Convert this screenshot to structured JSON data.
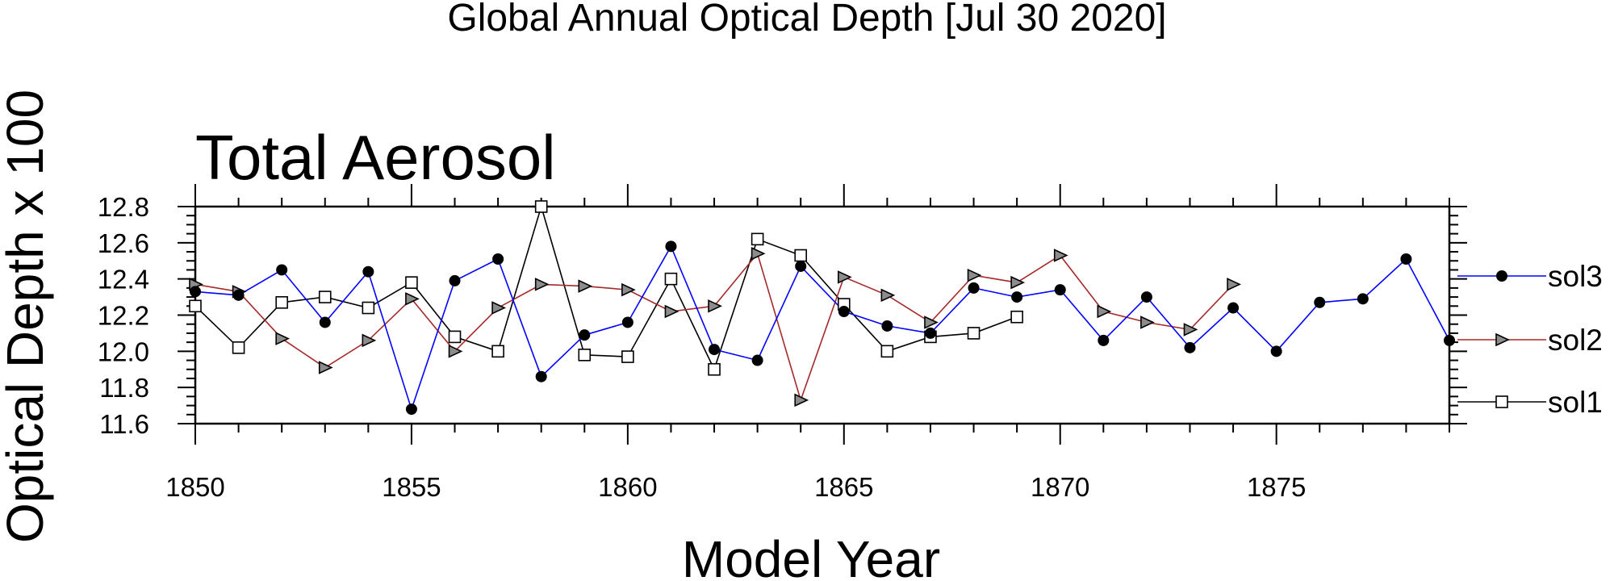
{
  "chart_data": {
    "type": "line",
    "title": "Global Annual Optical Depth [Jul 30 2020]",
    "subtitle": "Total Aerosol",
    "xlabel": "Model Year",
    "ylabel": "Optical Depth x 100",
    "xlim": [
      1850,
      1879
    ],
    "ylim": [
      11.6,
      12.8
    ],
    "xticks": [
      1850,
      1855,
      1860,
      1865,
      1870,
      1875
    ],
    "xtick_labels": [
      "1850",
      "1855",
      "1860",
      "1865",
      "1870",
      "1875"
    ],
    "yticks": [
      11.6,
      11.8,
      12.0,
      12.2,
      12.4,
      12.6,
      12.8
    ],
    "ytick_labels": [
      "11.6",
      "11.8",
      "12.0",
      "12.2",
      "12.4",
      "12.6",
      "12.8"
    ],
    "legend_position": "right",
    "series": [
      {
        "name": "sol3",
        "color": "#0000ff",
        "marker": "filled-circle",
        "x": [
          1850,
          1851,
          1852,
          1853,
          1854,
          1855,
          1856,
          1857,
          1858,
          1859,
          1860,
          1861,
          1862,
          1863,
          1864,
          1865,
          1866,
          1867,
          1868,
          1869,
          1870,
          1871,
          1872,
          1873,
          1874,
          1875,
          1876,
          1877,
          1878,
          1879
        ],
        "values": [
          12.33,
          12.31,
          12.45,
          12.16,
          12.44,
          11.68,
          12.39,
          12.51,
          11.86,
          12.09,
          12.16,
          12.58,
          12.01,
          11.95,
          12.47,
          12.22,
          12.14,
          12.1,
          12.35,
          12.3,
          12.34,
          12.06,
          12.3,
          12.02,
          12.24,
          12.0,
          12.27,
          12.29,
          12.51,
          12.06
        ]
      },
      {
        "name": "sol2",
        "color": "#a52a2a",
        "marker": "right-triangle",
        "x": [
          1850,
          1851,
          1852,
          1853,
          1854,
          1855,
          1856,
          1857,
          1858,
          1859,
          1860,
          1861,
          1862,
          1863,
          1864,
          1865,
          1866,
          1867,
          1868,
          1869,
          1870,
          1871,
          1872,
          1873,
          1874
        ],
        "values": [
          12.37,
          12.33,
          12.07,
          11.91,
          12.06,
          12.29,
          12.0,
          12.24,
          12.37,
          12.36,
          12.34,
          12.22,
          12.25,
          12.54,
          11.73,
          12.41,
          12.31,
          12.16,
          12.42,
          12.38,
          12.53,
          12.22,
          12.16,
          12.12,
          12.37
        ]
      },
      {
        "name": "sol1",
        "color": "#000000",
        "marker": "open-square",
        "x": [
          1850,
          1851,
          1852,
          1853,
          1854,
          1855,
          1856,
          1857,
          1858,
          1859,
          1860,
          1861,
          1862,
          1863,
          1864,
          1865,
          1866,
          1867,
          1868,
          1869
        ],
        "values": [
          12.25,
          12.02,
          12.27,
          12.3,
          12.24,
          12.38,
          12.08,
          12.0,
          12.8,
          11.98,
          11.97,
          12.4,
          11.9,
          12.62,
          12.53,
          12.26,
          12.0,
          12.08,
          12.1,
          12.19
        ]
      }
    ]
  }
}
